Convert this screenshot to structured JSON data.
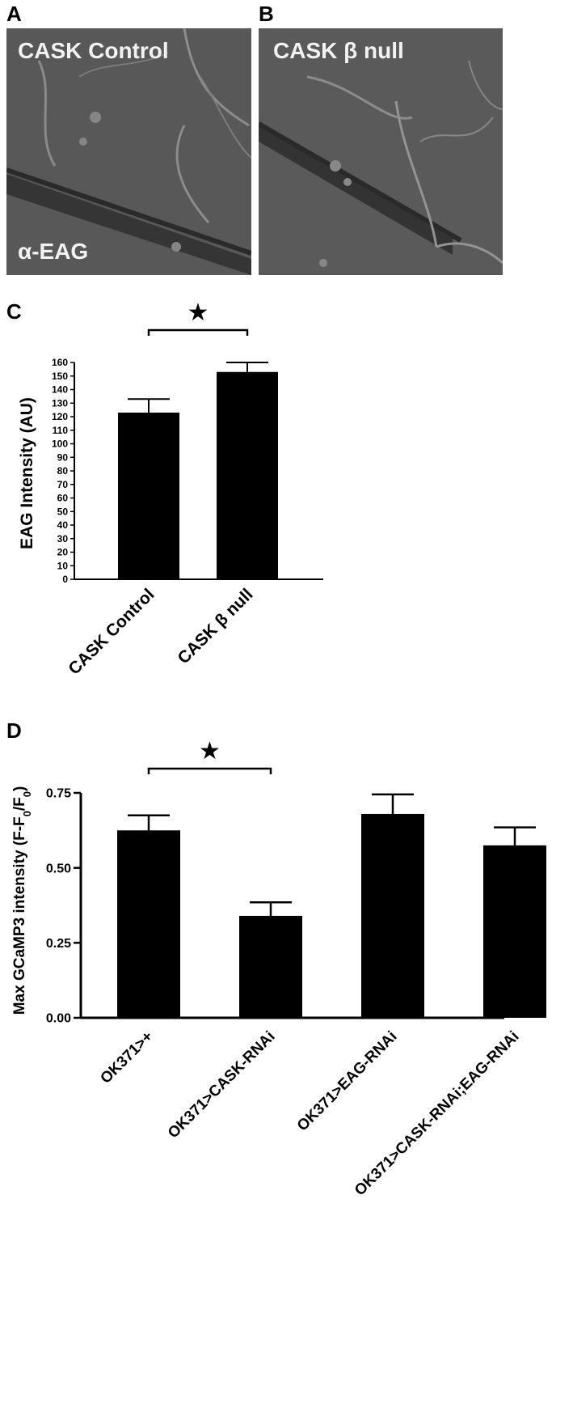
{
  "panels": {
    "A": {
      "letter": "A",
      "title": "CASK Control",
      "stain": "α-EAG"
    },
    "B": {
      "letter": "B",
      "title": "CASK β null"
    },
    "C": {
      "letter": "C"
    },
    "D": {
      "letter": "D"
    }
  },
  "significance_marker": "★",
  "chart_data": [
    {
      "panel": "C",
      "type": "bar",
      "ylabel": "EAG Intensity (AU)",
      "categories": [
        "CASK Control",
        "CASK β null"
      ],
      "values": [
        123,
        153
      ],
      "errors": [
        10,
        7
      ],
      "ylim": [
        0,
        160
      ],
      "yticks": [
        "0",
        "10",
        "20",
        "30",
        "40",
        "50",
        "60",
        "70",
        "80",
        "90",
        "100",
        "110",
        "120",
        "130",
        "140",
        "150",
        "160"
      ],
      "significance": {
        "between": [
          0,
          1
        ],
        "marker": "★"
      },
      "grid": false,
      "bar_color": "#000000"
    },
    {
      "panel": "D",
      "type": "bar",
      "ylabel": "Max GCaMP3 intensity (F-F",
      "ylabel_sub": "0",
      "ylabel_mid": "/F",
      "ylabel_end": ")",
      "categories": [
        "OK371>+",
        "OK371>CASK-RNAi",
        "OK371>EAG-RNAi",
        "OK371>CASK-RNAi;EAG-RNAi"
      ],
      "values": [
        0.625,
        0.34,
        0.68,
        0.575
      ],
      "errors": [
        0.05,
        0.045,
        0.065,
        0.06
      ],
      "ylim": [
        0,
        0.75
      ],
      "yticks": [
        "0.00",
        "0.25",
        "0.50",
        "0.75"
      ],
      "significance": {
        "between": [
          0,
          1
        ],
        "marker": "★"
      },
      "grid": false,
      "bar_color": "#000000"
    }
  ]
}
